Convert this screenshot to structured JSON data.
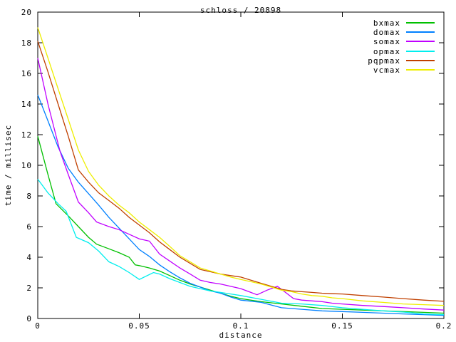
{
  "figure": {
    "background": "#ffffff",
    "frame_color": "#000000",
    "text_color": "#000000"
  },
  "chart_data": {
    "type": "line",
    "title": "schloss / 20898",
    "xlabel": "distance",
    "ylabel": "time / millisec",
    "xlim": [
      0,
      0.2
    ],
    "ylim": [
      0,
      20
    ],
    "xticks": [
      0,
      0.05,
      0.1,
      0.15,
      0.2
    ],
    "xtick_labels": [
      "0",
      "0.05",
      "0.1",
      "0.15",
      "0.2"
    ],
    "yticks": [
      0,
      2,
      4,
      6,
      8,
      10,
      12,
      14,
      16,
      18,
      20
    ],
    "ytick_labels": [
      "0",
      "2",
      "4",
      "6",
      "8",
      "10",
      "12",
      "14",
      "16",
      "18",
      "20"
    ],
    "grid": false,
    "legend_position": "top-right-inside",
    "series": [
      {
        "name": "bxmax",
        "color": "#00c000",
        "points": [
          [
            0,
            11.9
          ],
          [
            0.005,
            9.4
          ],
          [
            0.009,
            7.5
          ],
          [
            0.015,
            6.7
          ],
          [
            0.02,
            6.0
          ],
          [
            0.025,
            5.3
          ],
          [
            0.029,
            4.85
          ],
          [
            0.035,
            4.55
          ],
          [
            0.04,
            4.3
          ],
          [
            0.045,
            4.0
          ],
          [
            0.048,
            3.5
          ],
          [
            0.05,
            3.45
          ],
          [
            0.055,
            3.3
          ],
          [
            0.06,
            3.1
          ],
          [
            0.065,
            2.8
          ],
          [
            0.07,
            2.5
          ],
          [
            0.075,
            2.25
          ],
          [
            0.08,
            2.05
          ],
          [
            0.085,
            1.85
          ],
          [
            0.09,
            1.65
          ],
          [
            0.095,
            1.45
          ],
          [
            0.1,
            1.3
          ],
          [
            0.11,
            1.1
          ],
          [
            0.12,
            0.95
          ],
          [
            0.13,
            0.8
          ],
          [
            0.14,
            0.65
          ],
          [
            0.15,
            0.6
          ],
          [
            0.16,
            0.55
          ],
          [
            0.17,
            0.5
          ],
          [
            0.18,
            0.45
          ],
          [
            0.19,
            0.4
          ],
          [
            0.2,
            0.35
          ]
        ]
      },
      {
        "name": "domax",
        "color": "#0080ff",
        "points": [
          [
            0,
            14.6
          ],
          [
            0.005,
            12.9
          ],
          [
            0.01,
            11.2
          ],
          [
            0.015,
            9.8
          ],
          [
            0.02,
            8.9
          ],
          [
            0.025,
            8.15
          ],
          [
            0.03,
            7.4
          ],
          [
            0.035,
            6.6
          ],
          [
            0.04,
            5.9
          ],
          [
            0.045,
            5.2
          ],
          [
            0.05,
            4.5
          ],
          [
            0.055,
            4.05
          ],
          [
            0.06,
            3.5
          ],
          [
            0.065,
            3.05
          ],
          [
            0.07,
            2.65
          ],
          [
            0.075,
            2.3
          ],
          [
            0.08,
            2.05
          ],
          [
            0.085,
            1.8
          ],
          [
            0.09,
            1.65
          ],
          [
            0.095,
            1.4
          ],
          [
            0.1,
            1.2
          ],
          [
            0.11,
            1.05
          ],
          [
            0.12,
            0.7
          ],
          [
            0.13,
            0.6
          ],
          [
            0.14,
            0.5
          ],
          [
            0.15,
            0.45
          ],
          [
            0.16,
            0.4
          ],
          [
            0.17,
            0.35
          ],
          [
            0.18,
            0.3
          ],
          [
            0.19,
            0.25
          ],
          [
            0.2,
            0.2
          ]
        ]
      },
      {
        "name": "somax",
        "color": "#c000ff",
        "points": [
          [
            0,
            17.0
          ],
          [
            0.005,
            14.0
          ],
          [
            0.011,
            10.9
          ],
          [
            0.015,
            9.4
          ],
          [
            0.02,
            7.6
          ],
          [
            0.025,
            6.9
          ],
          [
            0.029,
            6.3
          ],
          [
            0.035,
            6.0
          ],
          [
            0.04,
            5.8
          ],
          [
            0.045,
            5.5
          ],
          [
            0.05,
            5.2
          ],
          [
            0.055,
            5.05
          ],
          [
            0.06,
            4.2
          ],
          [
            0.065,
            3.75
          ],
          [
            0.07,
            3.3
          ],
          [
            0.075,
            2.9
          ],
          [
            0.08,
            2.5
          ],
          [
            0.085,
            2.35
          ],
          [
            0.09,
            2.25
          ],
          [
            0.095,
            2.1
          ],
          [
            0.1,
            1.95
          ],
          [
            0.104,
            1.75
          ],
          [
            0.108,
            1.55
          ],
          [
            0.113,
            1.85
          ],
          [
            0.118,
            2.1
          ],
          [
            0.122,
            1.7
          ],
          [
            0.126,
            1.3
          ],
          [
            0.13,
            1.2
          ],
          [
            0.135,
            1.15
          ],
          [
            0.14,
            1.1
          ],
          [
            0.145,
            1.0
          ],
          [
            0.15,
            0.95
          ],
          [
            0.16,
            0.85
          ],
          [
            0.17,
            0.78
          ],
          [
            0.18,
            0.7
          ],
          [
            0.19,
            0.62
          ],
          [
            0.2,
            0.55
          ]
        ]
      },
      {
        "name": "opmax",
        "color": "#00eeee",
        "points": [
          [
            0,
            9.1
          ],
          [
            0.005,
            8.2
          ],
          [
            0.01,
            7.5
          ],
          [
            0.014,
            7.0
          ],
          [
            0.019,
            5.3
          ],
          [
            0.025,
            4.95
          ],
          [
            0.03,
            4.4
          ],
          [
            0.035,
            3.7
          ],
          [
            0.04,
            3.4
          ],
          [
            0.045,
            3.0
          ],
          [
            0.05,
            2.55
          ],
          [
            0.057,
            3.0
          ],
          [
            0.06,
            2.9
          ],
          [
            0.065,
            2.6
          ],
          [
            0.07,
            2.35
          ],
          [
            0.075,
            2.1
          ],
          [
            0.08,
            1.95
          ],
          [
            0.085,
            1.8
          ],
          [
            0.09,
            1.7
          ],
          [
            0.095,
            1.6
          ],
          [
            0.1,
            1.5
          ],
          [
            0.11,
            1.25
          ],
          [
            0.12,
            1.0
          ],
          [
            0.13,
            0.95
          ],
          [
            0.14,
            0.85
          ],
          [
            0.15,
            0.7
          ],
          [
            0.16,
            0.6
          ],
          [
            0.17,
            0.5
          ],
          [
            0.18,
            0.42
          ],
          [
            0.19,
            0.3
          ],
          [
            0.2,
            0.25
          ]
        ]
      },
      {
        "name": "pqpmax",
        "color": "#c04000",
        "points": [
          [
            0,
            18.1
          ],
          [
            0.005,
            16.1
          ],
          [
            0.01,
            14.0
          ],
          [
            0.015,
            11.9
          ],
          [
            0.02,
            9.7
          ],
          [
            0.025,
            8.9
          ],
          [
            0.03,
            8.2
          ],
          [
            0.035,
            7.7
          ],
          [
            0.04,
            7.2
          ],
          [
            0.045,
            6.6
          ],
          [
            0.05,
            6.1
          ],
          [
            0.055,
            5.6
          ],
          [
            0.06,
            5.0
          ],
          [
            0.065,
            4.5
          ],
          [
            0.07,
            4.0
          ],
          [
            0.075,
            3.6
          ],
          [
            0.08,
            3.2
          ],
          [
            0.085,
            3.05
          ],
          [
            0.09,
            2.9
          ],
          [
            0.095,
            2.8
          ],
          [
            0.1,
            2.7
          ],
          [
            0.105,
            2.5
          ],
          [
            0.11,
            2.3
          ],
          [
            0.115,
            2.1
          ],
          [
            0.12,
            1.9
          ],
          [
            0.125,
            1.8
          ],
          [
            0.13,
            1.75
          ],
          [
            0.135,
            1.7
          ],
          [
            0.14,
            1.65
          ],
          [
            0.145,
            1.62
          ],
          [
            0.15,
            1.6
          ],
          [
            0.16,
            1.5
          ],
          [
            0.17,
            1.4
          ],
          [
            0.18,
            1.3
          ],
          [
            0.19,
            1.2
          ],
          [
            0.2,
            1.12
          ]
        ]
      },
      {
        "name": "vcmax",
        "color": "#eeee00",
        "points": [
          [
            0,
            19.0
          ],
          [
            0.005,
            17.0
          ],
          [
            0.01,
            15.0
          ],
          [
            0.015,
            13.0
          ],
          [
            0.02,
            11.0
          ],
          [
            0.025,
            9.6
          ],
          [
            0.03,
            8.7
          ],
          [
            0.035,
            8.0
          ],
          [
            0.04,
            7.4
          ],
          [
            0.045,
            6.9
          ],
          [
            0.05,
            6.3
          ],
          [
            0.055,
            5.8
          ],
          [
            0.06,
            5.3
          ],
          [
            0.065,
            4.7
          ],
          [
            0.07,
            4.1
          ],
          [
            0.075,
            3.7
          ],
          [
            0.08,
            3.3
          ],
          [
            0.085,
            3.1
          ],
          [
            0.09,
            2.9
          ],
          [
            0.095,
            2.7
          ],
          [
            0.1,
            2.55
          ],
          [
            0.105,
            2.4
          ],
          [
            0.11,
            2.25
          ],
          [
            0.115,
            2.05
          ],
          [
            0.12,
            1.85
          ],
          [
            0.125,
            1.75
          ],
          [
            0.13,
            1.6
          ],
          [
            0.135,
            1.5
          ],
          [
            0.14,
            1.45
          ],
          [
            0.145,
            1.35
          ],
          [
            0.15,
            1.3
          ],
          [
            0.16,
            1.15
          ],
          [
            0.17,
            1.05
          ],
          [
            0.18,
            0.95
          ],
          [
            0.19,
            0.9
          ],
          [
            0.2,
            0.85
          ]
        ]
      }
    ]
  }
}
